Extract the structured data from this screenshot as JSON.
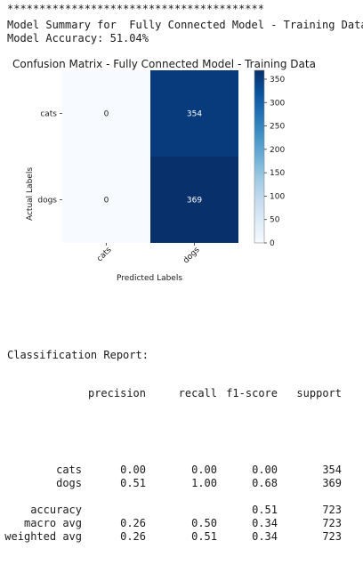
{
  "output": {
    "separator": "****************************************",
    "summary_line": "Model Summary for  Fully Connected Model - Training Data",
    "accuracy_line": "Model Accuracy: 51.04%"
  },
  "chart_data": {
    "type": "heatmap",
    "title": "Confusion Matrix - Fully Connected Model - Training Data",
    "xlabel": "Predicted Labels",
    "ylabel": "Actual Labels",
    "x_categories": [
      "cats",
      "dogs"
    ],
    "y_categories": [
      "cats",
      "dogs"
    ],
    "values": [
      [
        0,
        354
      ],
      [
        0,
        369
      ]
    ],
    "colormap": "Blues",
    "colorbar": {
      "min": 0,
      "max": 369,
      "ticks": [
        0,
        50,
        100,
        150,
        200,
        250,
        300,
        350
      ]
    }
  },
  "report": {
    "heading": "Classification Report:",
    "headers": [
      "precision",
      "recall",
      "f1-score",
      "support"
    ],
    "rows": [
      {
        "name": "cats",
        "precision": "0.00",
        "recall": "0.00",
        "f1": "0.00",
        "support": "354"
      },
      {
        "name": "dogs",
        "precision": "0.51",
        "recall": "1.00",
        "f1": "0.68",
        "support": "369"
      },
      {
        "name": "",
        "precision": "",
        "recall": "",
        "f1": "",
        "support": ""
      },
      {
        "name": "accuracy",
        "precision": "",
        "recall": "",
        "f1": "0.51",
        "support": "723"
      },
      {
        "name": "macro avg",
        "precision": "0.26",
        "recall": "0.50",
        "f1": "0.34",
        "support": "723"
      },
      {
        "name": "weighted avg",
        "precision": "0.26",
        "recall": "0.51",
        "f1": "0.34",
        "support": "723"
      }
    ]
  }
}
